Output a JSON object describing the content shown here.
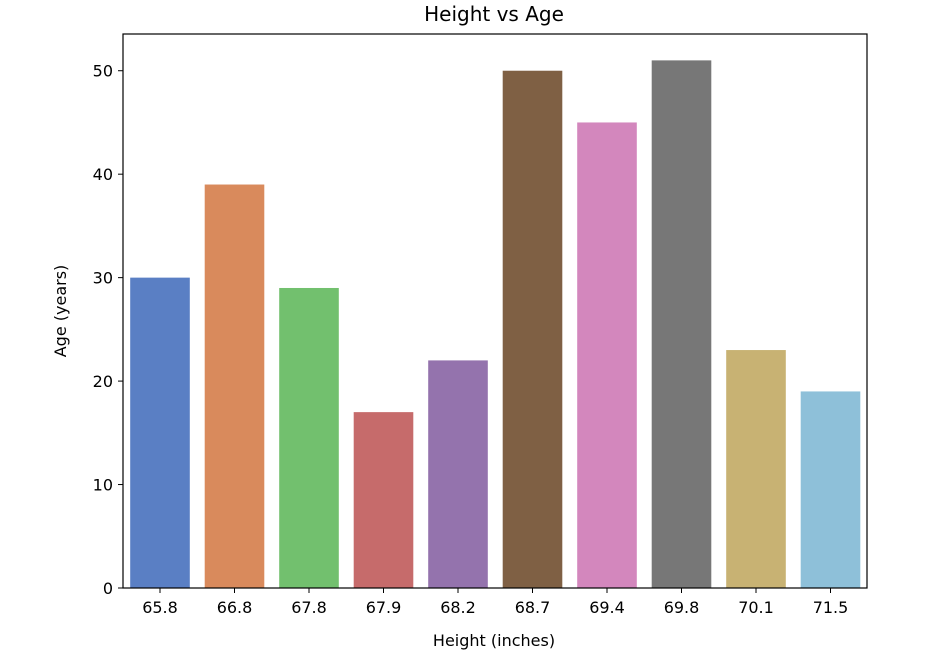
{
  "chart_data": {
    "type": "bar",
    "title": "Height vs Age",
    "xlabel": "Height (inches)",
    "ylabel": "Age (years)",
    "categories": [
      "65.8",
      "66.8",
      "67.8",
      "67.9",
      "68.2",
      "68.7",
      "69.4",
      "69.8",
      "70.1",
      "71.5"
    ],
    "values": [
      30,
      39,
      29,
      17,
      22,
      50,
      45,
      51,
      23,
      19
    ],
    "colors": [
      "#5a7fc4",
      "#d98a5c",
      "#72c06e",
      "#c66b6b",
      "#9473ad",
      "#7f6044",
      "#d387bd",
      "#777777",
      "#c8b273",
      "#8ec0d9"
    ],
    "ylim": [
      0,
      53.55
    ],
    "yticks": [
      0,
      10,
      20,
      30,
      40,
      50
    ],
    "grid": false,
    "legend": "none"
  }
}
